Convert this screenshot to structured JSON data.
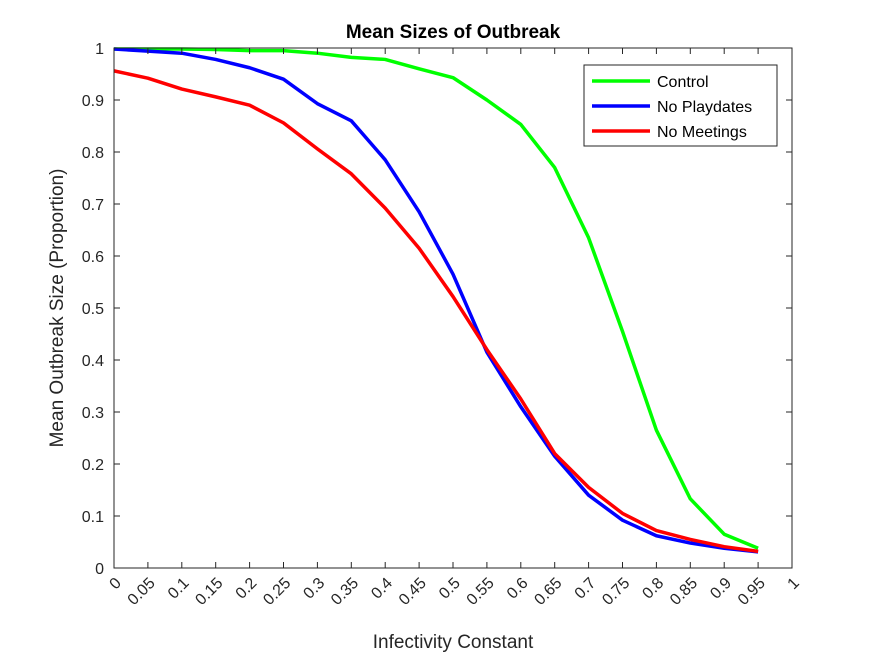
{
  "chart_data": {
    "type": "line",
    "title": "Mean Sizes of Outbreak",
    "xlabel": "Infectivity Constant",
    "ylabel": "Mean Outbreak Size (Proportion)",
    "xlim": [
      0,
      1
    ],
    "ylim": [
      0,
      1
    ],
    "grid": false,
    "legend_position": "top-right",
    "x_ticks": [
      "0",
      "0.05",
      "0.1",
      "0.15",
      "0.2",
      "0.25",
      "0.3",
      "0.35",
      "0.4",
      "0.45",
      "0.5",
      "0.55",
      "0.6",
      "0.65",
      "0.7",
      "0.75",
      "0.8",
      "0.85",
      "0.9",
      "0.95",
      "1"
    ],
    "y_ticks": [
      "0",
      "0.1",
      "0.2",
      "0.3",
      "0.4",
      "0.5",
      "0.6",
      "0.7",
      "0.8",
      "0.9",
      "1"
    ],
    "x": [
      0,
      0.05,
      0.1,
      0.15,
      0.2,
      0.25,
      0.3,
      0.35,
      0.4,
      0.45,
      0.5,
      0.55,
      0.6,
      0.65,
      0.7,
      0.75,
      0.8,
      0.85,
      0.9,
      0.95
    ],
    "series": [
      {
        "name": "Control",
        "color": "#00ff00",
        "values": [
          0.998,
          0.998,
          0.998,
          0.997,
          0.995,
          0.995,
          0.99,
          0.982,
          0.978,
          0.96,
          0.943,
          0.9,
          0.853,
          0.77,
          0.635,
          0.455,
          0.265,
          0.133,
          0.065,
          0.038
        ]
      },
      {
        "name": "No Playdates",
        "color": "#0000ff",
        "values": [
          0.998,
          0.994,
          0.99,
          0.978,
          0.962,
          0.94,
          0.893,
          0.86,
          0.785,
          0.685,
          0.565,
          0.415,
          0.31,
          0.215,
          0.14,
          0.092,
          0.062,
          0.048,
          0.038,
          0.031
        ]
      },
      {
        "name": "No Meetings",
        "color": "#ff0000",
        "values": [
          0.956,
          0.942,
          0.921,
          0.906,
          0.89,
          0.856,
          0.806,
          0.758,
          0.692,
          0.615,
          0.522,
          0.42,
          0.325,
          0.22,
          0.155,
          0.105,
          0.072,
          0.055,
          0.041,
          0.032
        ]
      }
    ]
  }
}
